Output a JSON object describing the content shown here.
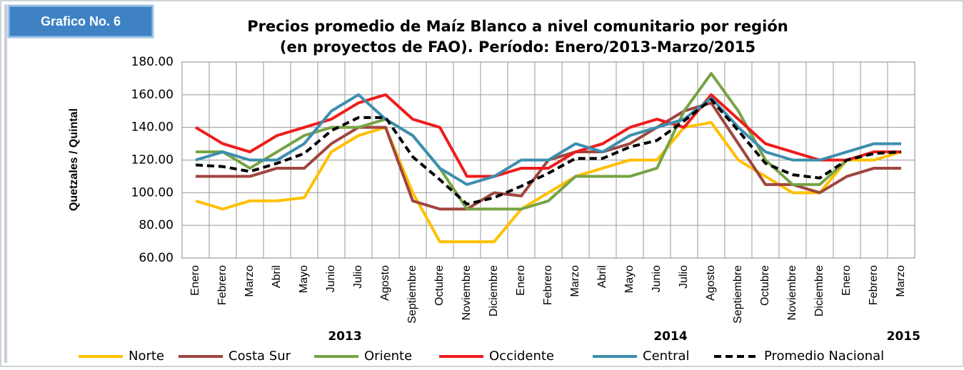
{
  "badge": "Grafico No. 6",
  "chart_data": {
    "type": "line",
    "title": [
      "Precios promedio de Maíz Blanco a nivel comunitario por región",
      "(en proyectos de FAO). Período: Enero/2013-Marzo/2015"
    ],
    "y_label": "Quetzales / Quintal",
    "categories": [
      "Enero",
      "Febrero",
      "Marzo",
      "Abril",
      "Mayo",
      "Junio",
      "Julio",
      "Agosto",
      "Septiembre",
      "Octubre",
      "Noviembre",
      "Diciembre",
      "Enero",
      "Febrero",
      "Marzo",
      "Abril",
      "Mayo",
      "Junio",
      "Julio",
      "Agosto",
      "Septiembre",
      "Octubre",
      "Noviembre",
      "Diciembre",
      "Enero",
      "Febrero",
      "Marzo"
    ],
    "years": [
      "2013",
      "2014",
      "2015"
    ],
    "ylim": [
      60,
      180
    ],
    "yticks": [
      {
        "value": 60,
        "label": "60.00"
      },
      {
        "value": 80,
        "label": "80.00"
      },
      {
        "value": 100,
        "label": "100.00"
      },
      {
        "value": 120,
        "label": "120.00"
      },
      {
        "value": 140,
        "label": "140.00"
      },
      {
        "value": 160,
        "label": "160.00"
      },
      {
        "value": 180,
        "label": "180.00"
      }
    ],
    "grid": true,
    "series": [
      {
        "name": "Norte",
        "color": "#ffc000",
        "values": [
          95,
          90,
          95,
          95,
          97,
          125,
          135,
          140,
          100,
          70,
          70,
          70,
          90,
          100,
          110,
          115,
          120,
          120,
          140,
          143,
          120,
          110,
          100,
          100,
          120,
          120,
          125
        ]
      },
      {
        "name": "Costa Sur",
        "color": "#a0453f",
        "values": [
          110,
          110,
          110,
          115,
          115,
          130,
          140,
          140,
          95,
          90,
          90,
          100,
          98,
          120,
          125,
          125,
          130,
          140,
          150,
          155,
          130,
          105,
          105,
          100,
          110,
          115,
          115
        ]
      },
      {
        "name": "Oriente",
        "color": "#77a345",
        "values": [
          125,
          125,
          115,
          125,
          135,
          140,
          140,
          145,
          135,
          115,
          90,
          90,
          90,
          95,
          110,
          110,
          110,
          115,
          150,
          173,
          150,
          120,
          105,
          105,
          120,
          125,
          125
        ]
      },
      {
        "name": "Occidente",
        "color": "#ee1c1c",
        "values": [
          140,
          130,
          125,
          135,
          140,
          145,
          155,
          160,
          145,
          140,
          110,
          110,
          115,
          115,
          125,
          130,
          140,
          145,
          140,
          160,
          145,
          130,
          125,
          120,
          120,
          125,
          125
        ]
      },
      {
        "name": "Central",
        "color": "#3d8fad",
        "values": [
          120,
          125,
          120,
          120,
          130,
          150,
          160,
          145,
          135,
          115,
          105,
          110,
          120,
          120,
          130,
          125,
          135,
          140,
          145,
          158,
          140,
          125,
          120,
          120,
          125,
          130,
          130
        ]
      },
      {
        "name": "Promedio Nacional",
        "color": "#000000",
        "dashed": true,
        "values": [
          117,
          116,
          113,
          118,
          124,
          138,
          146,
          146,
          122,
          108,
          93,
          97,
          104,
          112,
          121,
          121,
          128,
          132,
          144,
          157,
          138,
          118,
          111,
          109,
          120,
          124,
          125
        ]
      }
    ]
  }
}
